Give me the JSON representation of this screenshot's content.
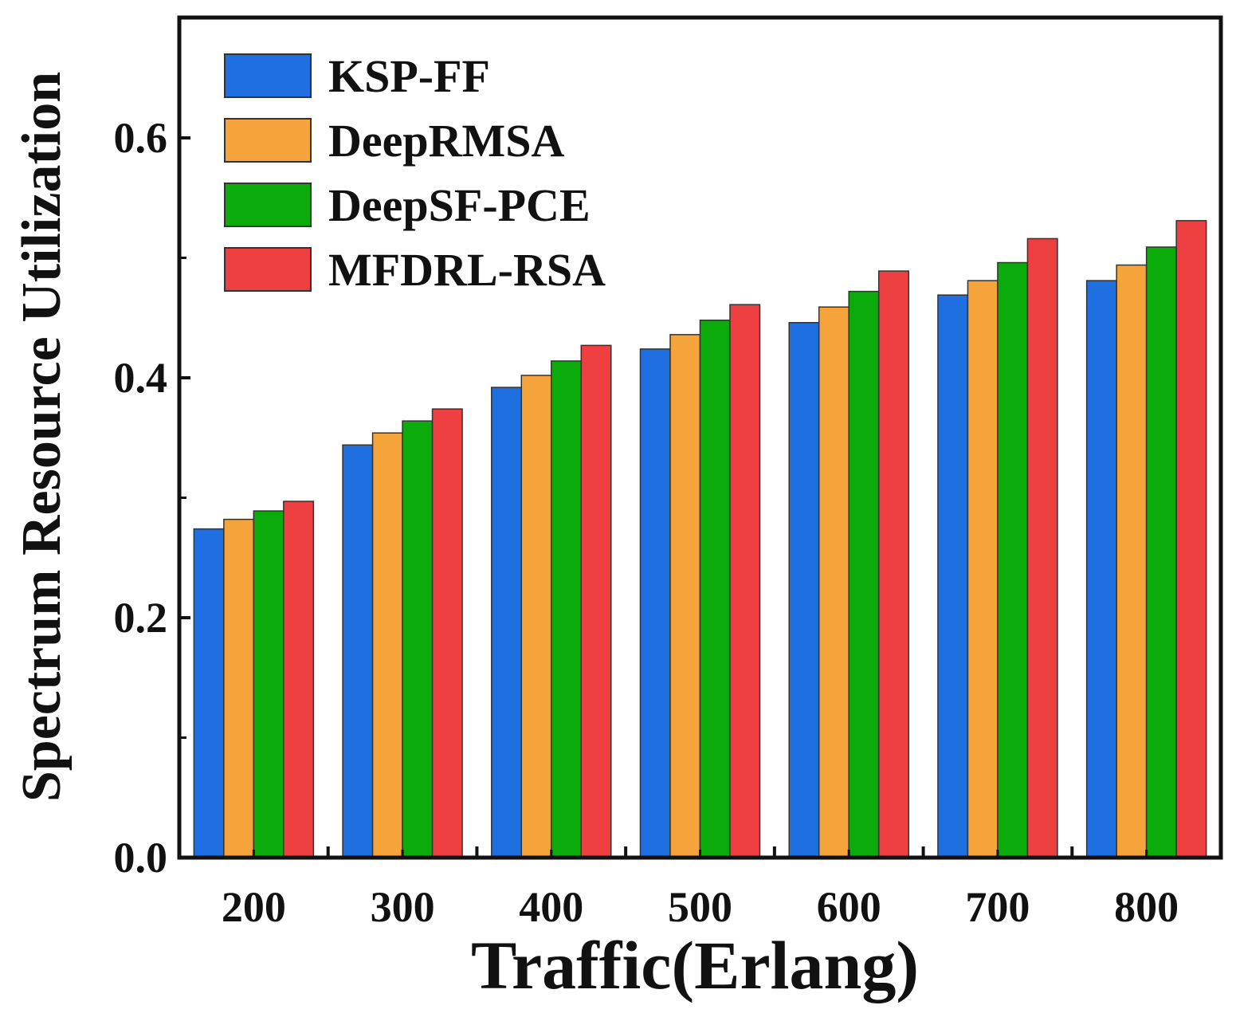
{
  "chart_data": {
    "type": "bar",
    "title": "",
    "xlabel": "Traffic(Erlang)",
    "ylabel": "Spectrum Resource Utilization",
    "categories": [
      "200",
      "300",
      "400",
      "500",
      "600",
      "700",
      "800"
    ],
    "ylim": [
      0,
      0.6
    ],
    "yticks": [
      "0.0",
      "0.2",
      "0.4",
      "0.6"
    ],
    "grid": false,
    "legend_position": "top-left",
    "series": [
      {
        "name": "KSP-FF",
        "color": "#1f6fe0",
        "values": [
          0.274,
          0.344,
          0.392,
          0.424,
          0.446,
          0.469,
          0.481
        ]
      },
      {
        "name": "DeepRMSA",
        "color": "#f5a33b",
        "values": [
          0.282,
          0.354,
          0.402,
          0.436,
          0.459,
          0.481,
          0.494
        ]
      },
      {
        "name": "DeepSF-PCE",
        "color": "#0bab0b",
        "values": [
          0.289,
          0.364,
          0.414,
          0.448,
          0.472,
          0.496,
          0.509
        ]
      },
      {
        "name": "MFDRL-RSA",
        "color": "#ee4040",
        "values": [
          0.297,
          0.374,
          0.427,
          0.461,
          0.489,
          0.516,
          0.531
        ]
      }
    ]
  }
}
